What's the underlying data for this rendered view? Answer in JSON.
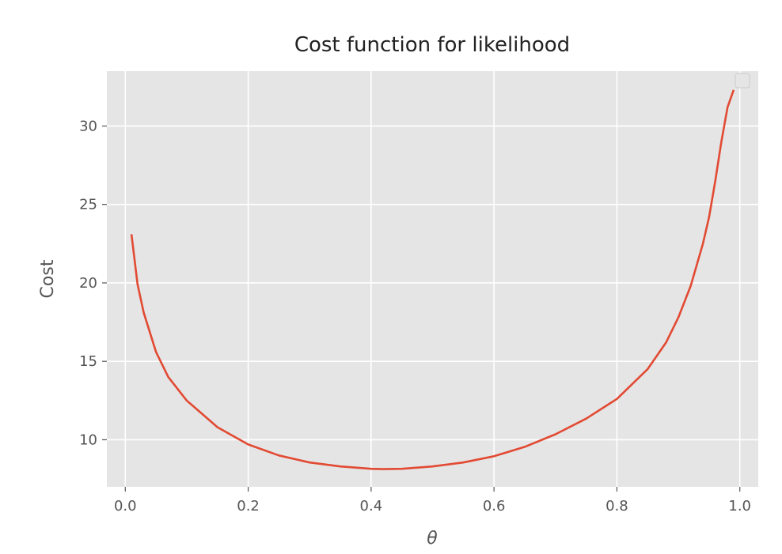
{
  "chart_data": {
    "type": "line",
    "title": "Cost function for likelihood",
    "xlabel": "θ",
    "ylabel": "Cost",
    "xlim": [
      -0.03,
      1.03
    ],
    "ylim": [
      7.0,
      33.5
    ],
    "xticks": [
      0.0,
      0.2,
      0.4,
      0.6,
      0.8,
      1.0
    ],
    "xtick_labels": [
      "0.0",
      "0.2",
      "0.4",
      "0.6",
      "0.8",
      "1.0"
    ],
    "yticks": [
      10,
      15,
      20,
      25,
      30
    ],
    "ytick_labels": [
      "10",
      "15",
      "20",
      "25",
      "30"
    ],
    "grid": true,
    "legend": "top-right, empty",
    "style": "ggplot",
    "background_color": "#e5e5e5",
    "grid_color": "#ffffff",
    "series": [
      {
        "color": "#e24a33",
        "x": [
          0.01,
          0.02,
          0.03,
          0.05,
          0.07,
          0.1,
          0.15,
          0.2,
          0.25,
          0.3,
          0.35,
          0.4,
          0.42,
          0.45,
          0.5,
          0.55,
          0.6,
          0.65,
          0.7,
          0.75,
          0.8,
          0.85,
          0.88,
          0.9,
          0.92,
          0.94,
          0.95,
          0.96,
          0.97,
          0.98,
          0.99
        ],
        "y": [
          23.1,
          19.9,
          18.1,
          15.6,
          14.0,
          12.5,
          10.8,
          9.7,
          9.0,
          8.55,
          8.3,
          8.15,
          8.13,
          8.15,
          8.3,
          8.55,
          8.95,
          9.55,
          10.35,
          11.35,
          12.6,
          14.5,
          16.2,
          17.8,
          19.8,
          22.5,
          24.2,
          26.5,
          29.0,
          31.2,
          32.3
        ]
      }
    ]
  }
}
